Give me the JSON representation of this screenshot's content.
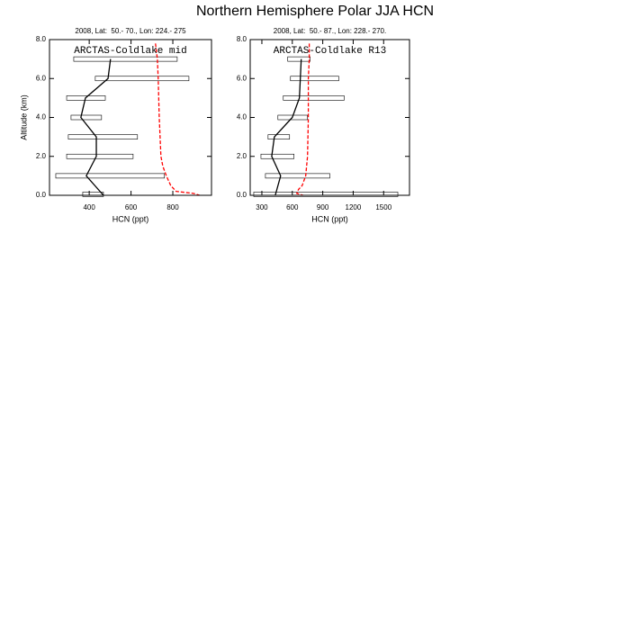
{
  "title": "Northern Hemisphere Polar JJA HCN",
  "chart_data": [
    {
      "type": "line",
      "subtitle": "2008, Lat:  50.- 70., Lon: 224.- 275",
      "annotation": "ARCTAS-Coldlake mid",
      "xlabel": "HCN (ppt)",
      "ylabel": "Altitude (km)",
      "xlim": [
        210,
        985
      ],
      "xticks": [
        400,
        600,
        800
      ],
      "ylim": [
        0,
        8
      ],
      "yticks": [
        {
          "value": 0,
          "label": "0.0"
        },
        {
          "value": 2,
          "label": "2.0"
        },
        {
          "value": 4,
          "label": "4.0"
        },
        {
          "value": 6,
          "label": "6.0"
        },
        {
          "value": 8,
          "label": "8.0"
        }
      ],
      "boxes": {
        "y": [
          7,
          6,
          5,
          4,
          3,
          2,
          1,
          0.05
        ],
        "low": [
          326,
          429,
          292,
          313,
          300,
          292,
          240,
          369
        ],
        "high": [
          821,
          877,
          477,
          459,
          631,
          610,
          760,
          468
        ],
        "color": "#000000"
      },
      "series": [
        {
          "color": "#000000",
          "dashed": false,
          "x": [
            502,
            490,
            382,
            360,
            434,
            434,
            386,
            468
          ],
          "y": [
            7,
            6,
            5,
            4,
            3,
            2,
            1,
            0
          ]
        },
        {
          "color": "#ff0000",
          "dashed": true,
          "x": [
            717,
            726,
            730,
            735,
            743,
            752,
            769,
            790,
            816,
            898,
            928
          ],
          "y": [
            7.8,
            7,
            6,
            4,
            2,
            1.5,
            1,
            0.5,
            0.2,
            0.1,
            0
          ]
        }
      ]
    },
    {
      "type": "line",
      "subtitle": "2008, Lat:  50.- 87., Lon: 228.- 270.",
      "annotation": "ARCTAS-Coldlake R13",
      "xlabel": "HCN (ppt)",
      "xlim": [
        185,
        1755
      ],
      "xticks": [
        300,
        600,
        900,
        1200,
        1500
      ],
      "ylim": [
        0,
        8
      ],
      "yticks": [
        {
          "value": 0,
          "label": "0.0"
        },
        {
          "value": 2,
          "label": "2.0"
        },
        {
          "value": 4,
          "label": "4.0"
        },
        {
          "value": 6,
          "label": "6.0"
        },
        {
          "value": 8,
          "label": "8.0"
        }
      ],
      "boxes": {
        "y": [
          7,
          6,
          5,
          4,
          3,
          2,
          1,
          0.05
        ],
        "low": [
          555,
          582,
          511,
          458,
          361,
          291,
          335,
          220
        ],
        "high": [
          776,
          1058,
          1111,
          750,
          573,
          617,
          970,
          1640
        ],
        "color": "#000000"
      },
      "series": [
        {
          "color": "#000000",
          "dashed": false,
          "x": [
            688,
            679,
            670,
            600,
            423,
            397,
            485,
            432
          ],
          "y": [
            7,
            6,
            5,
            4,
            3,
            2,
            1,
            0
          ]
        },
        {
          "color": "#ff0000",
          "dashed": true,
          "x": [
            767,
            767,
            758,
            758,
            750,
            732,
            697,
            661,
            644,
            705
          ],
          "y": [
            7.8,
            7,
            6,
            4,
            2,
            1,
            0.5,
            0.3,
            0.1,
            0
          ]
        }
      ]
    }
  ]
}
